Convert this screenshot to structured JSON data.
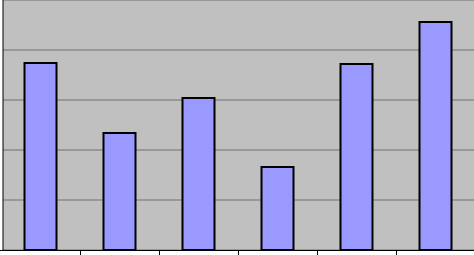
{
  "chart_data": {
    "type": "bar",
    "categories": [
      null,
      null,
      null,
      null,
      null,
      null
    ],
    "values": [
      3.74,
      2.34,
      3.04,
      1.66,
      3.72,
      4.56
    ],
    "color": "#9999ff",
    "ylim": [
      0,
      5
    ],
    "yticks": [
      0,
      1,
      2,
      3,
      4,
      5
    ],
    "grid": true
  }
}
